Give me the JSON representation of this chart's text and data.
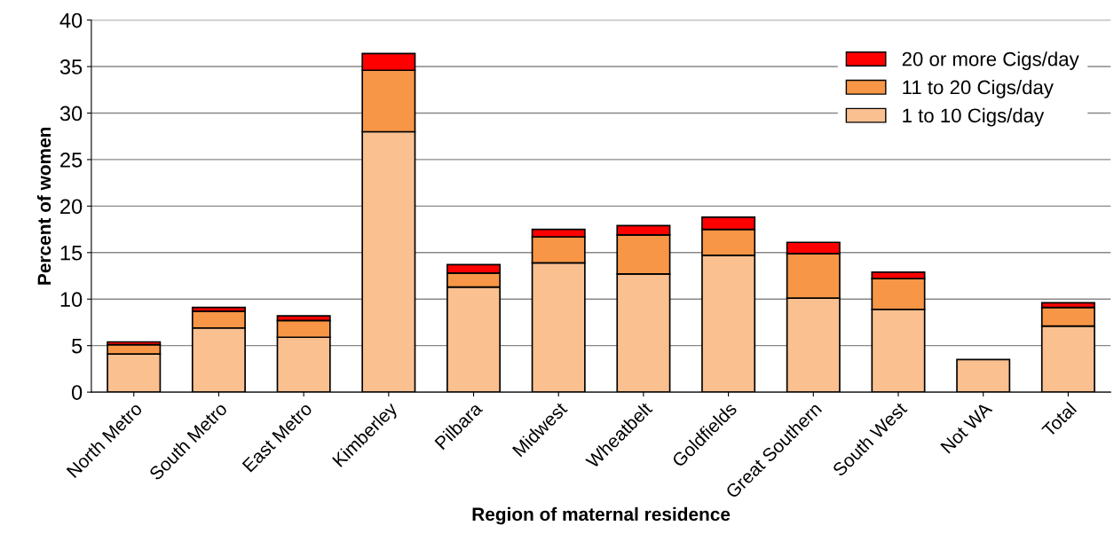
{
  "chart_data": {
    "type": "bar",
    "stacked": true,
    "xlabel": "Region of maternal residence",
    "ylabel": "Percent of women",
    "categories": [
      "North Metro",
      "South Metro",
      "East Metro",
      "Kimberley",
      "Pilbara",
      "Midwest",
      "Wheatbelt",
      "Goldfields",
      "Great Southern",
      "South West",
      "Not WA",
      "Total"
    ],
    "series": [
      {
        "name": "1 to 10 Cigs/day",
        "color": "#fac090",
        "values": [
          4.1,
          6.9,
          5.9,
          28.0,
          11.3,
          13.9,
          12.7,
          14.7,
          10.1,
          8.9,
          3.5,
          7.1
        ]
      },
      {
        "name": "11 to 20 Cigs/day",
        "color": "#f79646",
        "values": [
          1.0,
          1.8,
          1.8,
          6.6,
          1.5,
          2.8,
          4.2,
          2.8,
          4.8,
          3.3,
          null,
          2.0
        ]
      },
      {
        "name": "20 or more Cigs/day",
        "color": "#ff0000",
        "values": [
          0.3,
          0.4,
          0.5,
          1.8,
          0.9,
          0.8,
          1.0,
          1.3,
          1.2,
          0.7,
          null,
          0.5
        ]
      }
    ],
    "ylim": [
      0,
      40
    ],
    "yticks": [
      0,
      5,
      10,
      15,
      20,
      25,
      30,
      35,
      40
    ],
    "grid": "y",
    "legend": "top right"
  }
}
